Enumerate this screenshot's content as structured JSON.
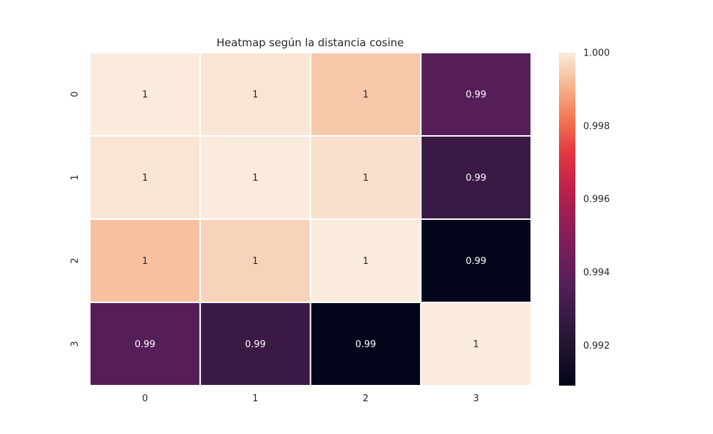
{
  "chart_data": {
    "type": "heatmap",
    "title": "Heatmap según la distancia cosine",
    "x_categories": [
      "0",
      "1",
      "2",
      "3"
    ],
    "y_categories": [
      "0",
      "1",
      "2",
      "3"
    ],
    "values": [
      [
        1.0,
        0.9999,
        0.9994,
        0.9937
      ],
      [
        0.9999,
        1.0,
        0.9998,
        0.9928
      ],
      [
        0.9993,
        0.9996,
        1.0,
        0.9909
      ],
      [
        0.9937,
        0.9928,
        0.9909,
        1.0
      ]
    ],
    "annotations": [
      [
        "1",
        "1",
        "1",
        "0.99"
      ],
      [
        "1",
        "1",
        "1",
        "0.99"
      ],
      [
        "1",
        "1",
        "1",
        "0.99"
      ],
      [
        "0.99",
        "0.99",
        "0.99",
        "1"
      ]
    ],
    "colorbar": {
      "range": [
        0.9909,
        1.0
      ],
      "ticks": [
        1.0,
        0.998,
        0.996,
        0.994,
        0.992
      ],
      "tick_labels": [
        "1.000",
        "0.998",
        "0.996",
        "0.994",
        "0.992"
      ],
      "colormap": "rocket"
    },
    "cell_separator_color": "#ffffff"
  }
}
